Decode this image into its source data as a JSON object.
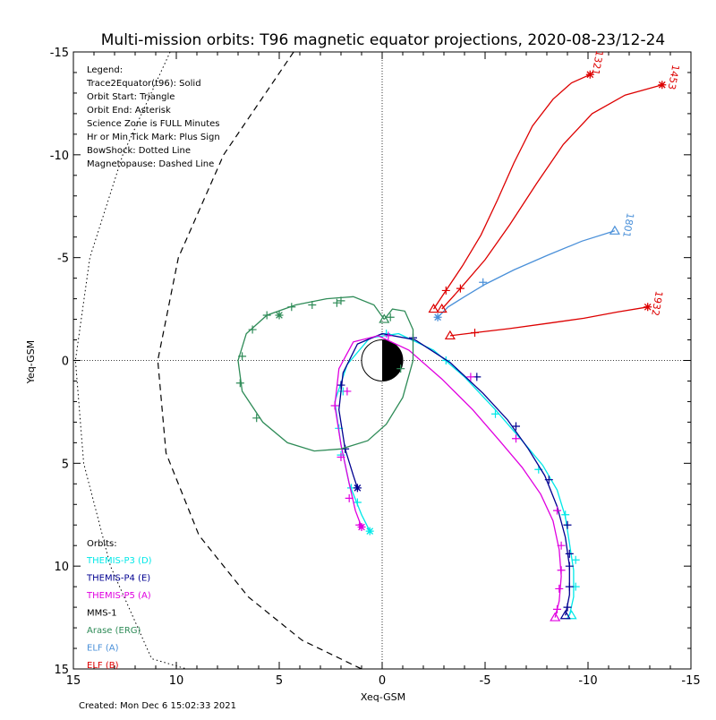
{
  "chart_data": {
    "type": "line",
    "title": "Multi-mission orbits: T96 magnetic equator projections, 2020-08-23/12-24",
    "xlabel": "Xeq-GSM",
    "ylabel": "Yeq-GSM",
    "xlim": [
      15,
      -15
    ],
    "ylim": [
      15,
      -15
    ],
    "xticks": [
      15,
      10,
      5,
      0,
      -5,
      -10,
      -15
    ],
    "yticks": [
      -15,
      -10,
      -5,
      0,
      5,
      10,
      15
    ],
    "created": "Created: Mon Dec  6 15:02:33 2021",
    "legend": {
      "placement": "top-left",
      "items": [
        "Legend:",
        "Trace2Equator(t96): Solid",
        "Orbit Start: Triangle",
        "Orbit End: Asterisk",
        "Science Zone is FULL Minutes",
        "Hr or Min Tick Mark: Plus Sign",
        "BowShock: Dotted Line",
        "Magnetopause: Dashed Line"
      ]
    },
    "orbits_legend": {
      "placement": "bottom-left",
      "heading": "Orbits:",
      "items": [
        {
          "label": "THEMIS-P3 (D)",
          "color": "#00e8e8"
        },
        {
          "label": "THEMIS-P4 (E)",
          "color": "#000090"
        },
        {
          "label": "THEMIS-P5 (A)",
          "color": "#e000e0"
        },
        {
          "label": "MMS-1",
          "color": "#000000"
        },
        {
          "label": "Arase (ERG)",
          "color": "#2e8b57"
        },
        {
          "label": "ELF (A)",
          "color": "#4a90d9"
        },
        {
          "label": "ELF (B)",
          "color": "#dd0000"
        }
      ]
    },
    "elf_labels": [
      {
        "text": "1321",
        "x": -10.3,
        "y": -14.5,
        "color": "#dd0000",
        "rotate": 100
      },
      {
        "text": "1453",
        "x": -14.0,
        "y": -13.8,
        "color": "#dd0000",
        "rotate": 100
      },
      {
        "text": "1801",
        "x": -11.8,
        "y": -6.6,
        "color": "#4a90d9",
        "rotate": 100
      },
      {
        "text": "1932",
        "x": -13.2,
        "y": -2.8,
        "color": "#dd0000",
        "rotate": 100
      }
    ],
    "series": [
      {
        "name": "THEMIS-P3 (D)",
        "color": "#00e8e8",
        "x": [
          -9.1,
          -9.3,
          -9.3,
          -9.1,
          -8.9,
          -8.5,
          -7.8,
          -6.8,
          -5.5,
          -4.0,
          -2.5,
          -0.8,
          0.6,
          1.7,
          2.3,
          2.0,
          1.6,
          1.0,
          0.6
        ],
        "y": [
          12.4,
          11.5,
          10.2,
          8.9,
          7.6,
          6.3,
          5.1,
          3.9,
          2.4,
          0.8,
          -0.5,
          -1.3,
          -1.1,
          0.2,
          2.0,
          4.1,
          6.0,
          7.5,
          8.3
        ],
        "ticks": [
          [
            -9.4,
            11.0
          ],
          [
            -9.4,
            9.7
          ],
          [
            -8.9,
            7.5
          ],
          [
            -7.6,
            5.3
          ],
          [
            -5.5,
            2.6
          ],
          [
            -3.1,
            0.0
          ],
          [
            -0.2,
            -1.3
          ],
          [
            1.9,
            1.5
          ],
          [
            2.1,
            3.3
          ],
          [
            2.0,
            4.6
          ],
          [
            1.5,
            6.2
          ],
          [
            1.2,
            6.9
          ]
        ],
        "start": [
          -9.2,
          12.4
        ],
        "end": [
          0.6,
          8.3
        ]
      },
      {
        "name": "THEMIS-P4 (E)",
        "color": "#000090",
        "x": [
          -8.9,
          -9.1,
          -9.1,
          -8.9,
          -8.5,
          -7.9,
          -7.1,
          -6.1,
          -4.9,
          -3.3,
          -1.6,
          0.0,
          1.2,
          1.9,
          2.1,
          1.8,
          1.4,
          1.2
        ],
        "y": [
          12.4,
          11.4,
          10.0,
          8.6,
          7.1,
          5.6,
          4.3,
          2.9,
          1.6,
          0.1,
          -1.0,
          -1.3,
          -0.8,
          0.6,
          2.4,
          4.3,
          5.6,
          6.2
        ],
        "ticks": [
          [
            -9.0,
            12.0
          ],
          [
            -9.1,
            11.0
          ],
          [
            -9.1,
            10.0
          ],
          [
            -9.1,
            9.4
          ],
          [
            -9.0,
            8.0
          ],
          [
            -8.1,
            5.8
          ],
          [
            -6.5,
            3.2
          ],
          [
            -4.6,
            0.8
          ],
          [
            -1.5,
            -1.1
          ],
          [
            2.0,
            1.2
          ],
          [
            1.8,
            4.3
          ]
        ],
        "start": [
          -8.9,
          12.4
        ],
        "end": [
          1.2,
          6.2
        ]
      },
      {
        "name": "THEMIS-P5 (A)",
        "color": "#e000e0",
        "x": [
          -8.4,
          -8.6,
          -8.7,
          -8.6,
          -8.3,
          -7.7,
          -6.8,
          -5.7,
          -4.4,
          -2.9,
          -1.3,
          0.2,
          1.4,
          2.1,
          2.3,
          2.0,
          1.6,
          1.3,
          1.0
        ],
        "y": [
          12.5,
          11.7,
          10.5,
          9.2,
          7.8,
          6.5,
          5.2,
          3.9,
          2.4,
          0.9,
          -0.5,
          -1.2,
          -0.9,
          0.4,
          2.2,
          4.1,
          6.0,
          7.3,
          8.1
        ],
        "ticks": [
          [
            -8.5,
            12.1
          ],
          [
            -8.6,
            11.1
          ],
          [
            -8.7,
            10.2
          ],
          [
            -8.7,
            9.0
          ],
          [
            -8.5,
            7.3
          ],
          [
            -6.5,
            3.8
          ],
          [
            -4.3,
            0.8
          ],
          [
            -0.3,
            -1.2
          ],
          [
            1.7,
            1.5
          ],
          [
            2.3,
            2.2
          ],
          [
            2.0,
            4.7
          ],
          [
            1.6,
            6.7
          ],
          [
            1.1,
            8.0
          ]
        ],
        "start": [
          -8.4,
          12.5
        ],
        "end": [
          1.0,
          8.1
        ]
      },
      {
        "name": "Arase (ERG)",
        "color": "#2e8b57",
        "x": [
          -0.1,
          -0.5,
          -1.1,
          -1.5,
          -1.5,
          -1.0,
          -0.2,
          0.7,
          2.0,
          3.3,
          4.6,
          5.8,
          6.8,
          7.0,
          6.6,
          5.6,
          4.2,
          2.7,
          1.4,
          0.4,
          -0.1
        ],
        "y": [
          -2.0,
          -2.5,
          -2.4,
          -1.5,
          0.0,
          1.8,
          3.1,
          3.9,
          4.3,
          4.4,
          4.0,
          3.0,
          1.5,
          0.0,
          -1.3,
          -2.2,
          -2.7,
          -3.0,
          -3.1,
          -2.7,
          -2.0
        ],
        "ticks": [
          [
            -0.4,
            -2.1
          ],
          [
            -0.9,
            0.4
          ],
          [
            6.1,
            2.8
          ],
          [
            6.9,
            1.1
          ],
          [
            6.8,
            -0.2
          ],
          [
            6.3,
            -1.5
          ],
          [
            5.6,
            -2.2
          ],
          [
            4.4,
            -2.6
          ],
          [
            3.4,
            -2.7
          ],
          [
            2.2,
            -2.8
          ],
          [
            2.0,
            -2.9
          ]
        ],
        "start": [
          -0.1,
          -2.0
        ],
        "end": [
          5.0,
          -2.2
        ]
      },
      {
        "name": "ELF (A)",
        "color": "#4a90d9",
        "x": [
          -2.7,
          -3.2,
          -4.0,
          -5.0,
          -6.4,
          -8.0,
          -9.7,
          -11.3
        ],
        "y": [
          -2.1,
          -2.6,
          -3.1,
          -3.7,
          -4.4,
          -5.1,
          -5.8,
          -6.3
        ],
        "ticks": [
          [
            -4.9,
            -3.8
          ]
        ],
        "start": [
          -11.3,
          -6.3
        ],
        "end": [
          -2.7,
          -2.1
        ]
      },
      {
        "name": "ELF (B) 1321",
        "color": "#dd0000",
        "x": [
          -2.5,
          -3.1,
          -3.9,
          -4.8,
          -5.6,
          -6.4,
          -7.3,
          -8.3,
          -9.2,
          -10.1
        ],
        "y": [
          -2.5,
          -3.4,
          -4.6,
          -6.1,
          -7.8,
          -9.6,
          -11.4,
          -12.7,
          -13.5,
          -13.9
        ],
        "ticks": [
          [
            -3.1,
            -3.4
          ]
        ],
        "start": [
          -2.5,
          -2.5
        ],
        "end": [
          -10.1,
          -13.9
        ]
      },
      {
        "name": "ELF (B) 1453",
        "color": "#dd0000",
        "x": [
          -2.9,
          -3.8,
          -5.0,
          -6.2,
          -7.5,
          -8.8,
          -10.2,
          -11.8,
          -13.6
        ],
        "y": [
          -2.5,
          -3.5,
          -4.9,
          -6.6,
          -8.6,
          -10.5,
          -12.0,
          -12.9,
          -13.4
        ],
        "ticks": [
          [
            -3.8,
            -3.5
          ]
        ],
        "start": [
          -2.9,
          -2.5
        ],
        "end": [
          -13.6,
          -13.4
        ]
      },
      {
        "name": "ELF (B) 1932",
        "color": "#dd0000",
        "x": [
          -3.3,
          -4.5,
          -6.2,
          -8.0,
          -9.8,
          -11.4,
          -12.9
        ],
        "y": [
          -1.2,
          -1.35,
          -1.55,
          -1.8,
          -2.05,
          -2.35,
          -2.6
        ],
        "ticks": [
          [
            -4.5,
            -1.35
          ]
        ],
        "start": [
          -3.3,
          -1.2
        ],
        "end": [
          -12.9,
          -2.6
        ]
      }
    ],
    "boundaries": {
      "bowshock": {
        "style": "dotted",
        "x": [
          10.3,
          12.6,
          14.2,
          14.9,
          14.5,
          13.2,
          11.2,
          9.5
        ],
        "y": [
          -15.0,
          -10.0,
          -5.0,
          0.0,
          5.0,
          10.0,
          14.5,
          15.0
        ]
      },
      "magnetopause": {
        "style": "dashed",
        "x": [
          4.3,
          7.7,
          9.9,
          10.9,
          10.5,
          8.9,
          6.5,
          3.9,
          1.0
        ],
        "y": [
          -15.0,
          -10.0,
          -5.0,
          0.0,
          4.5,
          8.5,
          11.5,
          13.6,
          15.0
        ]
      }
    },
    "earth": {
      "radius": 1.0
    }
  }
}
